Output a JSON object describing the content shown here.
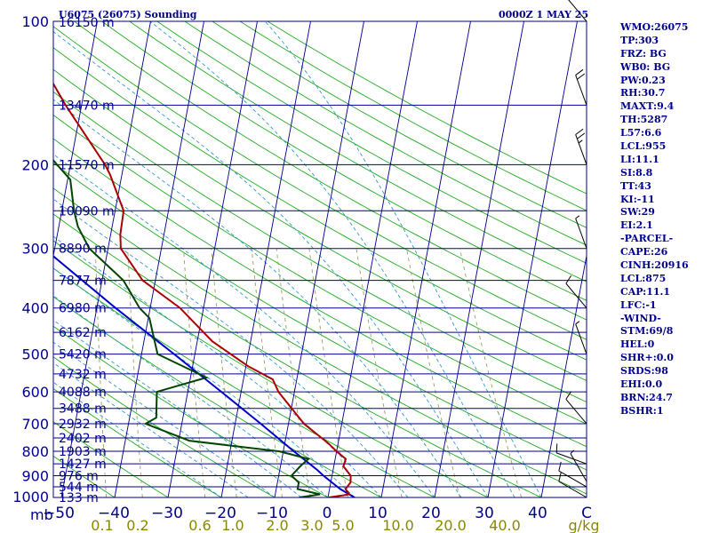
{
  "header": {
    "title": "U6075 (26075) Sounding",
    "time": "0000Z  1 MAY 25"
  },
  "indices": [
    "WMO:26075",
    "TP:303",
    "FRZ: BG",
    "WB0: BG",
    "PW:0.23",
    "RH:30.7",
    "MAXT:9.4",
    "TH:5287",
    "L57:6.6",
    "LCL:955",
    "LI:11.1",
    "SI:8.8",
    "TT:43",
    "KI:-11",
    "SW:29",
    "EI:2.1",
    "-PARCEL-",
    "CAPE:26",
    "CINH:20916",
    "LCL:875",
    "CAP:11.1",
    "LFC:-1",
    "-WIND-",
    "STM:69/8",
    "HEL:0",
    "SHR+:0.0",
    "SRDS:98",
    "EHI:0.0",
    "BRN:24.7",
    "BSHR:1"
  ],
  "colors": {
    "isobar": "#00008b",
    "isotherm": "#00008b",
    "dry_adiabat": "#22aa22",
    "moist_adiabat": "#3399cc",
    "mixing_ratio": "#99a060",
    "temperature": "#aa0000",
    "dewpoint": "#004400",
    "parcel": "#0000cc",
    "text": "#00008b",
    "mixing_text": "#888800"
  },
  "chart_data": {
    "type": "skew-t log-p",
    "title": "U6075 (26075) Sounding",
    "time": "0000Z  1 MAY 25",
    "x_unit": "C",
    "y_unit": "mb",
    "xlim": [
      -50,
      50
    ],
    "ylim": [
      1000,
      100
    ],
    "pressure_labels": [
      100,
      200,
      300,
      400,
      500,
      600,
      700,
      800,
      900,
      1000
    ],
    "height_labels": [
      {
        "p": 100,
        "h": "16150 m"
      },
      {
        "p": 150,
        "h": "13470 m"
      },
      {
        "p": 200,
        "h": "11570 m"
      },
      {
        "p": 250,
        "h": "10090 m"
      },
      {
        "p": 300,
        "h": "8890 m"
      },
      {
        "p": 350,
        "h": "7877 m"
      },
      {
        "p": 400,
        "h": "6980 m"
      },
      {
        "p": 450,
        "h": "6162 m"
      },
      {
        "p": 500,
        "h": "5420 m"
      },
      {
        "p": 550,
        "h": "4732 m"
      },
      {
        "p": 600,
        "h": "4088 m"
      },
      {
        "p": 650,
        "h": "3488 m"
      },
      {
        "p": 700,
        "h": "2932 m"
      },
      {
        "p": 750,
        "h": "2402 m"
      },
      {
        "p": 800,
        "h": "1903 m"
      },
      {
        "p": 850,
        "h": "1427 m"
      },
      {
        "p": 900,
        "h": "976 m"
      },
      {
        "p": 950,
        "h": "544 m"
      },
      {
        "p": 1000,
        "h": "133 m"
      }
    ],
    "temperature_ticks": [
      "−50",
      "−40",
      "−30",
      "−20",
      "−10",
      "0",
      "10",
      "20",
      "30",
      "40",
      "C"
    ],
    "mixing_ratio_labels": [
      "0.1",
      "0.2",
      "0.6",
      "1.0",
      "2.0",
      "3.0",
      "5.0",
      "10.0",
      "20.0",
      "40.0",
      "g/kg"
    ],
    "temperature": [
      {
        "p": 1000,
        "t": 0.2
      },
      {
        "p": 985,
        "t": 3.9
      },
      {
        "p": 960,
        "t": 3.0
      },
      {
        "p": 930,
        "t": 3.7
      },
      {
        "p": 900,
        "t": 3.5
      },
      {
        "p": 860,
        "t": 1.8
      },
      {
        "p": 830,
        "t": 2.0
      },
      {
        "p": 800,
        "t": 0.0
      },
      {
        "p": 770,
        "t": -1.8
      },
      {
        "p": 700,
        "t": -7.1
      },
      {
        "p": 600,
        "t": -13.0
      },
      {
        "p": 565,
        "t": -14.5
      },
      {
        "p": 530,
        "t": -19.6
      },
      {
        "p": 470,
        "t": -27.2
      },
      {
        "p": 400,
        "t": -34.4
      },
      {
        "p": 350,
        "t": -42.4
      },
      {
        "p": 300,
        "t": -47.6
      },
      {
        "p": 280,
        "t": -48.2
      },
      {
        "p": 250,
        "t": -48.4
      },
      {
        "p": 210,
        "t": -52.2
      },
      {
        "p": 200,
        "t": -53.5
      },
      {
        "p": 150,
        "t": -63.0
      },
      {
        "p": 100,
        "t": -75.0
      }
    ],
    "dewpoint": [
      {
        "p": 1000,
        "t": -5.4
      },
      {
        "p": 985,
        "t": -1.6
      },
      {
        "p": 960,
        "t": -6.0
      },
      {
        "p": 930,
        "t": -6.0
      },
      {
        "p": 900,
        "t": -7.6
      },
      {
        "p": 860,
        "t": -6.3
      },
      {
        "p": 830,
        "t": -5.0
      },
      {
        "p": 800,
        "t": -10.7
      },
      {
        "p": 760,
        "t": -28.0
      },
      {
        "p": 700,
        "t": -36.8
      },
      {
        "p": 680,
        "t": -35.0
      },
      {
        "p": 600,
        "t": -35.8
      },
      {
        "p": 560,
        "t": -27.0
      },
      {
        "p": 500,
        "t": -37.0
      },
      {
        "p": 420,
        "t": -39.8
      },
      {
        "p": 400,
        "t": -42.0
      },
      {
        "p": 350,
        "t": -46.0
      },
      {
        "p": 300,
        "t": -53.5
      },
      {
        "p": 270,
        "t": -56.4
      },
      {
        "p": 250,
        "t": -57.7
      },
      {
        "p": 215,
        "t": -59.5
      },
      {
        "p": 200,
        "t": -62.5
      },
      {
        "p": 150,
        "t": -74.0
      },
      {
        "p": 100,
        "t": -84.0
      }
    ],
    "parcel": [
      {
        "p": 1000,
        "t": 5.0
      },
      {
        "p": 960,
        "t": 2.0
      },
      {
        "p": 900,
        "t": -1.6
      },
      {
        "p": 875,
        "t": -3.0
      },
      {
        "p": 800,
        "t": -8.0
      },
      {
        "p": 700,
        "t": -15.2
      },
      {
        "p": 600,
        "t": -23.7
      },
      {
        "p": 500,
        "t": -33.9
      },
      {
        "p": 400,
        "t": -46.5
      },
      {
        "p": 300,
        "t": -62.0
      },
      {
        "p": 250,
        "t": -71.0
      },
      {
        "p": 200,
        "t": -81.5
      },
      {
        "p": 150,
        "t": -94.0
      },
      {
        "p": 100,
        "t": -112.0
      }
    ],
    "wind_barbs": [
      {
        "p": 1000,
        "direction": 300,
        "speed": 10
      },
      {
        "p": 950,
        "direction": 300,
        "speed": 10
      },
      {
        "p": 925,
        "direction": 330,
        "speed": 5
      },
      {
        "p": 850,
        "direction": 290,
        "speed": 10
      },
      {
        "p": 700,
        "direction": 320,
        "speed": 10
      },
      {
        "p": 500,
        "direction": 340,
        "speed": 5
      },
      {
        "p": 400,
        "direction": 320,
        "speed": 10
      },
      {
        "p": 300,
        "direction": 340,
        "speed": 5
      },
      {
        "p": 200,
        "direction": 340,
        "speed": 25
      },
      {
        "p": 150,
        "direction": 340,
        "speed": 20
      },
      {
        "p": 100,
        "direction": 320,
        "speed": 15
      }
    ]
  }
}
